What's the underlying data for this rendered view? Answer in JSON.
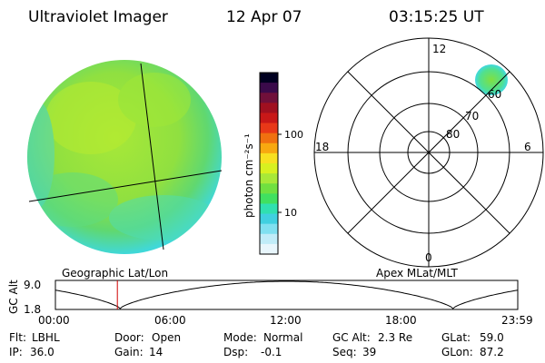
{
  "header": {
    "instrument": "Ultraviolet Imager",
    "date": "12 Apr 07",
    "time": "03:15:25 UT"
  },
  "left_panel": {
    "label": "Geographic Lat/Lon"
  },
  "colorbar": {
    "label": "photon cm⁻²s⁻¹",
    "ticks": [
      "100",
      "10"
    ],
    "colors": [
      "#000020",
      "#3a0a4a",
      "#70103a",
      "#a01020",
      "#c81818",
      "#e83818",
      "#f07010",
      "#f8a810",
      "#f8e020",
      "#d8f020",
      "#a8e838",
      "#70e040",
      "#40e060",
      "#30e0b0",
      "#40d0e0",
      "#80e0f0",
      "#c0ecf8",
      "#e8f6fc"
    ]
  },
  "right_panel": {
    "label": "Apex MLat/MLT",
    "mlt_labels": {
      "top": "12",
      "bottom": "0",
      "left": "18",
      "right": "6"
    },
    "lat_labels": [
      "60",
      "70",
      "80"
    ]
  },
  "altitude_plot": {
    "ylabel": "GC Alt",
    "yticks": [
      "9.0",
      "1.8"
    ],
    "xticks": [
      "00:00",
      "06:00",
      "12:00",
      "18:00",
      "23:59"
    ],
    "current_time_fraction": 0.134
  },
  "status": {
    "flt_label": "Flt:",
    "flt_value": "LBHL",
    "door_label": "Door:",
    "door_value": "Open",
    "mode_label": "Mode:",
    "mode_value": "Normal",
    "gcalt_label": "GC Alt:",
    "gcalt_value": "2.3 Re",
    "glat_label": "GLat:",
    "glat_value": "59.0",
    "ip_label": "IP:",
    "ip_value": "36.0",
    "gain_label": "Gain:",
    "gain_value": "14",
    "dsp_label": "Dsp:",
    "dsp_value": "-0.1",
    "seq_label": "Seq:",
    "seq_value": "39",
    "glon_label": "GLon:",
    "glon_value": "87.2"
  }
}
